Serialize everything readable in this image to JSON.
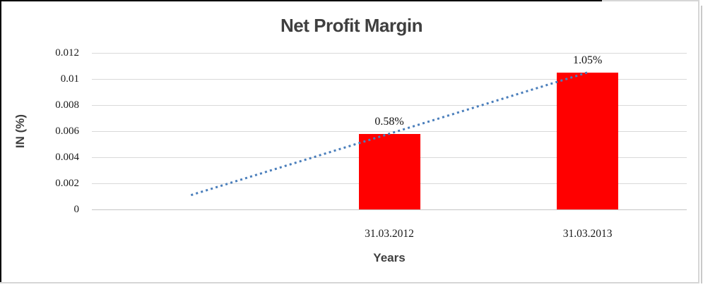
{
  "chart_data": {
    "type": "bar",
    "title": "Net Profit Margin",
    "xlabel": "Years",
    "ylabel": "IN (%)",
    "categories": [
      "",
      "31.03.2012",
      "31.03.2013"
    ],
    "values": [
      null,
      0.0058,
      0.0105
    ],
    "data_labels": [
      null,
      "0.58%",
      "1.05%"
    ],
    "ylim": [
      0,
      0.012
    ],
    "yticks": [
      0,
      0.002,
      0.004,
      0.006,
      0.008,
      0.01,
      0.012
    ],
    "ytick_labels": [
      "0",
      "0.002",
      "0.004",
      "0.006",
      "0.008",
      "0.01",
      "0.012"
    ],
    "grid": true,
    "legend": "none",
    "palette": {
      "bar": "#FF0000",
      "trendline": "#4A7EBB",
      "gridline": "#D9D9D9",
      "axis_line": "#C6C6C6",
      "heading_text": "#3F3F3F",
      "tick_text": "#1A1A1A"
    },
    "trendline": {
      "style": "dotted",
      "points": [
        {
          "slot": 0,
          "value": 0.0011
        },
        {
          "slot": 2,
          "value": 0.0105
        }
      ]
    }
  }
}
